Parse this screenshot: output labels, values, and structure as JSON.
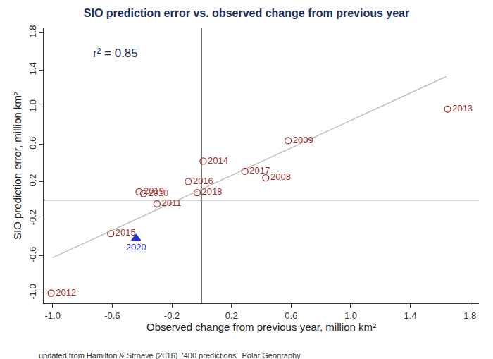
{
  "chart_data": {
    "type": "scatter",
    "title": "SIO prediction error vs. observed change from previous year",
    "x_label": "Observed change from previous year, million km²",
    "y_label": "SIO prediction error, million km²",
    "annotations": [
      "r² = 0.85"
    ],
    "footnote": "updated from Hamilton & Stroeve (2016)  '400 predictions'  Polar Geography",
    "xlim": [
      -1.06,
      1.86
    ],
    "ylim": [
      -1.11,
      1.85
    ],
    "xticks": [
      {
        "value": -1.0,
        "label": "-1.0"
      },
      -0.6,
      -0.2,
      0.2,
      0.6,
      {
        "value": 1.0,
        "label": "1.0"
      },
      1.4,
      1.8
    ],
    "yticks": [
      {
        "value": -1.0,
        "label": "-1.0"
      },
      -0.6,
      -0.2,
      0.2,
      0.6,
      {
        "value": 1.0,
        "label": "1.0"
      },
      1.4,
      1.8
    ],
    "hlines": [
      0
    ],
    "vlines": [
      0
    ],
    "grid": false,
    "series": [
      {
        "type": "scatter",
        "marker": "circle-open",
        "color": "#a03232",
        "labels": [
          "2008",
          "2009",
          "2010",
          "2011",
          "2012",
          "2013",
          "2014",
          "2015",
          "2016",
          "2017",
          "2018",
          "2019"
        ],
        "x": [
          0.43,
          0.58,
          -0.39,
          -0.3,
          -1.01,
          1.65,
          0.01,
          -0.61,
          -0.09,
          0.29,
          -0.03,
          -0.42
        ],
        "y": [
          0.24,
          0.64,
          0.07,
          -0.04,
          -1.0,
          0.98,
          0.42,
          -0.36,
          0.2,
          0.31,
          0.08,
          0.09
        ]
      },
      {
        "type": "scatter",
        "marker": "triangle-up",
        "color": "#1f2fd0",
        "labels": [
          "2020"
        ],
        "x": [
          -0.44
        ],
        "y": [
          -0.41
        ]
      },
      {
        "type": "line",
        "color": "#c0c0c0",
        "x": [
          -1.0,
          1.64
        ],
        "y": [
          -0.62,
          1.33
        ]
      }
    ]
  }
}
